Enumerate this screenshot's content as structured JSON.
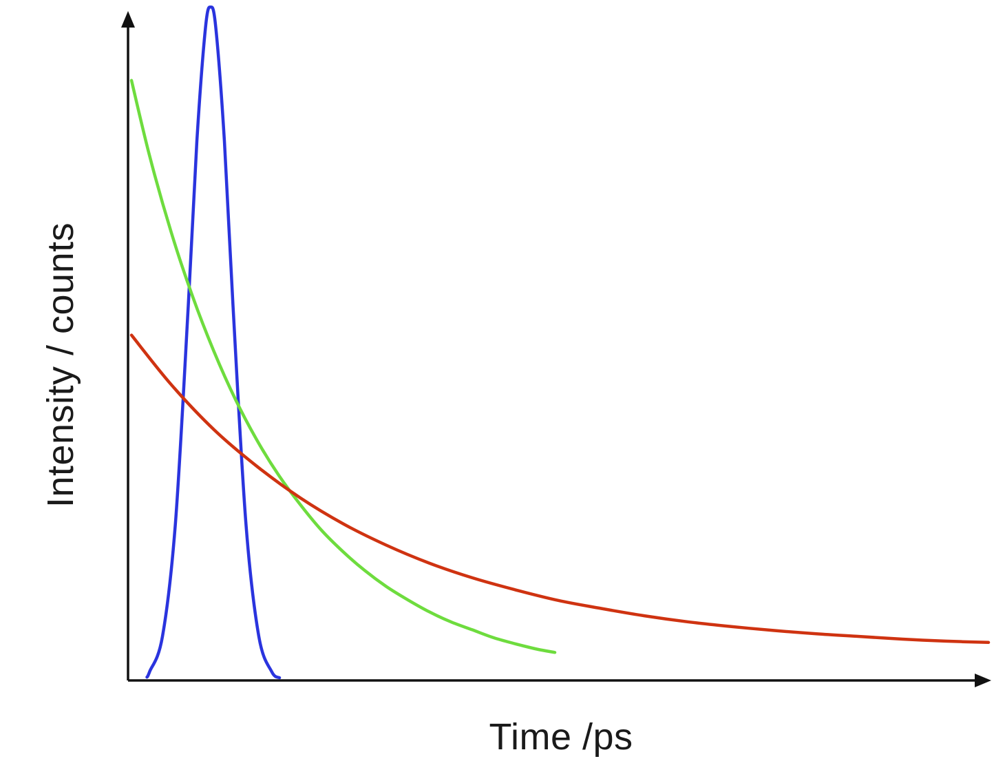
{
  "figure": {
    "background": "#ffffff",
    "axis_color": "#111111"
  },
  "chart_data": {
    "type": "line",
    "title": "",
    "xlabel": "Time /ps",
    "ylabel": "Intensity / counts",
    "grid": false,
    "legend": null,
    "x_axis": {
      "tick_labels": [],
      "arrowhead": true
    },
    "y_axis": {
      "tick_labels": [],
      "arrowhead": true
    },
    "axis_numeric_labels": "none (schematic plot, values in % of axis range)",
    "xlim": [
      0,
      100
    ],
    "ylim": [
      0,
      100
    ],
    "series": [
      {
        "name": "blue-gaussian-pulse",
        "description": "narrow gaussian peak near time origin",
        "color": "#2a34de",
        "points": [
          [
            2.2,
            0.5
          ],
          [
            2.5,
            1.3
          ],
          [
            4,
            6.6
          ],
          [
            5.5,
            23.5
          ],
          [
            7,
            56.2
          ],
          [
            8,
            80.9
          ],
          [
            9,
            97.9
          ],
          [
            9.6,
            101
          ],
          [
            10.2,
            97.9
          ],
          [
            11.2,
            80.9
          ],
          [
            12.2,
            56.2
          ],
          [
            13.7,
            23.5
          ],
          [
            15.2,
            6.6
          ],
          [
            16.7,
            1.3
          ],
          [
            17.6,
            0.4
          ]
        ]
      },
      {
        "name": "green-fast-decay",
        "description": "exponential decay, fast",
        "color": "#6edc3e",
        "points": [
          [
            0.4,
            90.0
          ],
          [
            2.5,
            78.7
          ],
          [
            5,
            67.3
          ],
          [
            7.5,
            57.6
          ],
          [
            10,
            49.3
          ],
          [
            12.5,
            42.1
          ],
          [
            15,
            36.0
          ],
          [
            17.5,
            30.8
          ],
          [
            20,
            26.4
          ],
          [
            22.5,
            22.5
          ],
          [
            25,
            19.3
          ],
          [
            27.5,
            16.5
          ],
          [
            30,
            14.1
          ],
          [
            32.5,
            12.1
          ],
          [
            35,
            10.3
          ],
          [
            37.5,
            8.8
          ],
          [
            40,
            7.6
          ],
          [
            42.5,
            6.4
          ],
          [
            45,
            5.5
          ],
          [
            47.5,
            4.7
          ],
          [
            49.6,
            4.2
          ]
        ]
      },
      {
        "name": "red-slow-decay",
        "description": "exponential decay, slow, extends to right edge",
        "color": "#cf3311",
        "points": [
          [
            0.4,
            51.8
          ],
          [
            5,
            44.4
          ],
          [
            10,
            37.6
          ],
          [
            15,
            32.1
          ],
          [
            20,
            27.4
          ],
          [
            25,
            23.5
          ],
          [
            30,
            20.3
          ],
          [
            35,
            17.6
          ],
          [
            40,
            15.4
          ],
          [
            45,
            13.6
          ],
          [
            50,
            12.0
          ],
          [
            55,
            10.8
          ],
          [
            60,
            9.7
          ],
          [
            65,
            8.8
          ],
          [
            70,
            8.1
          ],
          [
            75,
            7.5
          ],
          [
            80,
            7.0
          ],
          [
            85,
            6.6
          ],
          [
            90,
            6.2
          ],
          [
            95,
            5.9
          ],
          [
            100,
            5.7
          ]
        ]
      }
    ]
  }
}
